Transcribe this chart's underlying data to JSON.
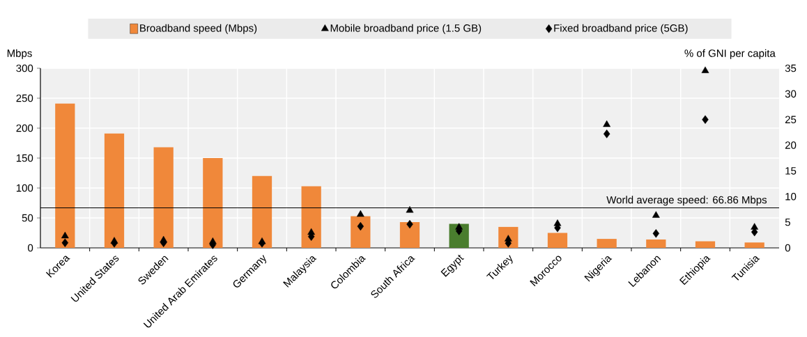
{
  "chart_data": {
    "type": "bar",
    "categories": [
      "Korea",
      "United States",
      "Sweden",
      "United Arab Emirates",
      "Germany",
      "Malaysia",
      "Colombia",
      "South Africa",
      "Egypt",
      "Turkey",
      "Morocco",
      "Nigeria",
      "Lebanon",
      "Ethiopia",
      "Tunisia"
    ],
    "series": [
      {
        "name": "Broadband speed (Mbps)",
        "colors": [
          "#f0883a",
          "#f0883a",
          "#f0883a",
          "#f0883a",
          "#f0883a",
          "#f0883a",
          "#f0883a",
          "#f0883a",
          "#4a7d2e",
          "#f0883a",
          "#f0883a",
          "#f0883a",
          "#f0883a",
          "#f0883a",
          "#f0883a"
        ],
        "values": [
          241,
          191,
          168,
          150,
          120,
          103,
          53,
          43,
          40,
          35,
          25,
          15,
          14,
          11,
          9
        ]
      },
      {
        "name": "Mobile broadband price (1.5 GB)",
        "type": "scatter",
        "axis": "y2",
        "marker": "triangle",
        "color": "#000000",
        "values": [
          2.3,
          1.3,
          1.5,
          1.2,
          1.2,
          3.0,
          6.5,
          7.3,
          4.0,
          1.7,
          4.7,
          24.0,
          6.3,
          34.5,
          4.0
        ]
      },
      {
        "name": "Fixed broadband price (5GB)",
        "type": "scatter",
        "axis": "y2",
        "marker": "diamond",
        "color": "#000000",
        "values": [
          1.0,
          0.9,
          1.0,
          0.6,
          0.9,
          2.2,
          4.2,
          4.6,
          3.3,
          0.9,
          3.9,
          22.2,
          2.8,
          25.0,
          3.1
        ]
      }
    ],
    "ylabel": "Mbps",
    "y2label": "% of GNI per capita",
    "ylim": [
      0,
      300
    ],
    "yticks": [
      0,
      50,
      100,
      150,
      200,
      250,
      300
    ],
    "y2lim": [
      0,
      35
    ],
    "y2ticks": [
      0,
      5,
      10,
      15,
      20,
      25,
      30,
      35
    ],
    "ref_lines": [
      {
        "axis": "y",
        "value": 66.86,
        "label": "World average speed: 66.86 Mbps",
        "color": "#000000"
      }
    ],
    "grid": true,
    "legend": "top"
  }
}
